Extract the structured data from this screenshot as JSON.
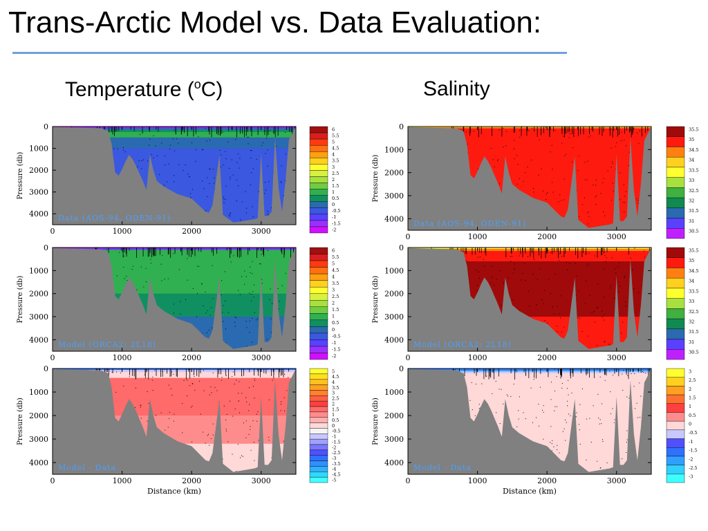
{
  "slide": {
    "title": "Trans-Arctic Model vs. Data Evaluation:",
    "left_heading": "Temperature (",
    "left_heading_sup": "o",
    "left_heading_end": "C)",
    "right_heading": "Salinity"
  },
  "colors": {
    "title_rule": "#6fa0dc",
    "land": "#808080"
  },
  "chart_data": [
    {
      "id": "temp-data",
      "type": "heatmap",
      "variable": "temperature",
      "panel_label": "Data (AOS-94, ODEN-91)",
      "ylabel": "Pressure (db)",
      "xlabel": "",
      "xlim": [
        0,
        3500
      ],
      "ylim": [
        0,
        4500
      ],
      "xticks": [
        0,
        1000,
        2000,
        3000
      ],
      "yticks": [
        0,
        1000,
        2000,
        3000,
        4000
      ],
      "colorbar": {
        "levels": [
          "6",
          "5.5",
          "5",
          "4.5",
          "4",
          "3.5",
          "3",
          "2.5",
          "2",
          "1.5",
          "1",
          "0.5",
          "0",
          "-0.5",
          "-1",
          "-1.5",
          "-2"
        ],
        "colors": [
          "#a01010",
          "#d81e1e",
          "#ff3a10",
          "#ff7010",
          "#ffa010",
          "#ffd020",
          "#ffff30",
          "#d8f040",
          "#a8e040",
          "#70cc40",
          "#30b050",
          "#109060",
          "#2a6ab0",
          "#3a58e0",
          "#5a40ff",
          "#9a30ff",
          "#d010ff"
        ]
      },
      "layers": [
        {
          "from": 0,
          "to": 40,
          "color": "#d010ff"
        },
        {
          "from": 40,
          "to": 120,
          "color": "#5a40ff"
        },
        {
          "from": 120,
          "to": 250,
          "color": "#109060"
        },
        {
          "from": 250,
          "to": 500,
          "color": "#30b050"
        },
        {
          "from": 500,
          "to": 1000,
          "color": "#2a6ab0"
        },
        {
          "from": 1000,
          "to": 4500,
          "color": "#3a58e0"
        }
      ]
    },
    {
      "id": "sal-data",
      "type": "heatmap",
      "variable": "salinity",
      "panel_label": "Data (AOS-94, ODEN-91)",
      "ylabel": "Pressure (db)",
      "xlabel": "",
      "xlim": [
        0,
        3500
      ],
      "ylim": [
        0,
        4500
      ],
      "xticks": [
        0,
        1000,
        2000,
        3000
      ],
      "yticks": [
        0,
        1000,
        2000,
        3000,
        4000
      ],
      "colorbar": {
        "levels": [
          "35.5",
          "35",
          "34.5",
          "34",
          "33.5",
          "33",
          "32.5",
          "32",
          "31.5",
          "31",
          "30.5"
        ],
        "colors": [
          "#a00a0a",
          "#ff1a10",
          "#ff8010",
          "#ffd020",
          "#ffff30",
          "#a8e040",
          "#40b040",
          "#108a50",
          "#2a6ab0",
          "#5a40ff",
          "#c020ff"
        ]
      },
      "layers": [
        {
          "from": 0,
          "to": 30,
          "color": "#ffff30"
        },
        {
          "from": 30,
          "to": 80,
          "color": "#ff8010"
        },
        {
          "from": 80,
          "to": 4500,
          "color": "#ff1a10"
        }
      ]
    },
    {
      "id": "temp-model",
      "type": "heatmap",
      "variable": "temperature",
      "panel_label": "Model (ORCA2: 2L18)",
      "ylabel": "Pressure (db)",
      "xlabel": "",
      "xlim": [
        0,
        3500
      ],
      "ylim": [
        0,
        4500
      ],
      "xticks": [
        0,
        1000,
        2000,
        3000
      ],
      "yticks": [
        0,
        1000,
        2000,
        3000,
        4000
      ],
      "colorbar": {
        "levels": [
          "6",
          "5.5",
          "5",
          "4.5",
          "4",
          "3.5",
          "3",
          "2.5",
          "2",
          "1.5",
          "1",
          "0.5",
          "0",
          "-0.5",
          "-1",
          "-1.5",
          "-2"
        ],
        "colors": [
          "#a01010",
          "#d81e1e",
          "#ff3a10",
          "#ff7010",
          "#ffa010",
          "#ffd020",
          "#ffff30",
          "#d8f040",
          "#a8e040",
          "#70cc40",
          "#30b050",
          "#109060",
          "#2a6ab0",
          "#3a58e0",
          "#5a40ff",
          "#9a30ff",
          "#d010ff"
        ]
      },
      "layers": [
        {
          "from": 0,
          "to": 40,
          "color": "#d010ff"
        },
        {
          "from": 40,
          "to": 100,
          "color": "#5a40ff"
        },
        {
          "from": 100,
          "to": 1000,
          "color": "#30b050"
        },
        {
          "from": 1000,
          "to": 2000,
          "color": "#30b050"
        },
        {
          "from": 2000,
          "to": 3000,
          "color": "#109060"
        },
        {
          "from": 3000,
          "to": 4500,
          "color": "#2a6ab0"
        }
      ]
    },
    {
      "id": "sal-model",
      "type": "heatmap",
      "variable": "salinity",
      "panel_label": "Model (ORCA2: 2L18)",
      "ylabel": "Pressure (db)",
      "xlabel": "",
      "xlim": [
        0,
        3500
      ],
      "ylim": [
        0,
        4500
      ],
      "xticks": [
        0,
        1000,
        2000,
        3000
      ],
      "yticks": [
        0,
        1000,
        2000,
        3000,
        4000
      ],
      "colorbar": {
        "levels": [
          "35.5",
          "35",
          "34.5",
          "34",
          "33.5",
          "33",
          "32.5",
          "32",
          "31.5",
          "31",
          "30.5"
        ],
        "colors": [
          "#a00a0a",
          "#ff1a10",
          "#ff8010",
          "#ffd020",
          "#ffff30",
          "#a8e040",
          "#40b040",
          "#108a50",
          "#2a6ab0",
          "#5a40ff",
          "#c020ff"
        ]
      },
      "layers": [
        {
          "from": 0,
          "to": 60,
          "color": "#ffff30"
        },
        {
          "from": 60,
          "to": 150,
          "color": "#ff8010"
        },
        {
          "from": 150,
          "to": 600,
          "color": "#ff1a10"
        },
        {
          "from": 600,
          "to": 3000,
          "color": "#a00a0a"
        },
        {
          "from": 3000,
          "to": 4500,
          "color": "#ff1a10"
        }
      ]
    },
    {
      "id": "temp-diff",
      "type": "heatmap",
      "variable": "temperature difference",
      "panel_label": "Model - Data",
      "ylabel": "Pressure (db)",
      "xlabel": "Distance (km)",
      "xlim": [
        0,
        3500
      ],
      "ylim": [
        0,
        4500
      ],
      "xticks": [
        0,
        1000,
        2000,
        3000
      ],
      "yticks": [
        0,
        1000,
        2000,
        3000,
        4000
      ],
      "colorbar": {
        "levels": [
          "5",
          "4.5",
          "4",
          "3.5",
          "3",
          "2.5",
          "2",
          "1.5",
          "1",
          "0.5",
          "0",
          "-0.5",
          "-1",
          "-1.5",
          "-2",
          "-2.5",
          "-3",
          "-3.5",
          "-4",
          "-4.5",
          "-5"
        ],
        "colors": [
          "#ffff30",
          "#ffe020",
          "#ffc020",
          "#ffa020",
          "#ff8030",
          "#ff6040",
          "#ff4040",
          "#ff6a6a",
          "#ff8c8c",
          "#ffb0b0",
          "#ffd8d8",
          "#f4f4f4",
          "#c8c8ff",
          "#a0a0ff",
          "#7878ff",
          "#5050ff",
          "#3070ff",
          "#3090ff",
          "#30b0ff",
          "#30d8ff",
          "#40ffff"
        ]
      },
      "layers": [
        {
          "from": 0,
          "to": 60,
          "color": "#3070ff"
        },
        {
          "from": 60,
          "to": 150,
          "color": "#c8c8ff"
        },
        {
          "from": 150,
          "to": 400,
          "color": "#ffd8d8"
        },
        {
          "from": 400,
          "to": 2000,
          "color": "#ff6a6a"
        },
        {
          "from": 2000,
          "to": 3200,
          "color": "#ff8c8c"
        },
        {
          "from": 3200,
          "to": 4500,
          "color": "#ffd8d8"
        }
      ]
    },
    {
      "id": "sal-diff",
      "type": "heatmap",
      "variable": "salinity difference",
      "panel_label": "Model - Data",
      "ylabel": "Pressure (db)",
      "xlabel": "Distance (km)",
      "xlim": [
        0,
        3500
      ],
      "ylim": [
        0,
        4500
      ],
      "xticks": [
        0,
        1000,
        2000,
        3000
      ],
      "yticks": [
        0,
        1000,
        2000,
        3000,
        4000
      ],
      "colorbar": {
        "levels": [
          "3",
          "2.5",
          "2",
          "1.5",
          "1",
          "0.5",
          "0",
          "-0.5",
          "-1",
          "-1.5",
          "-2",
          "-2.5",
          "-3"
        ],
        "colors": [
          "#ffff30",
          "#ffd020",
          "#ffa020",
          "#ff7030",
          "#ff4040",
          "#ff8c8c",
          "#ffd8d8",
          "#c8c8ff",
          "#5050ff",
          "#3070ff",
          "#30a0ff",
          "#30d0ff",
          "#40ffff"
        ]
      },
      "layers": [
        {
          "from": 0,
          "to": 50,
          "color": "#3070ff"
        },
        {
          "from": 50,
          "to": 120,
          "color": "#30a0ff"
        },
        {
          "from": 120,
          "to": 200,
          "color": "#c8c8ff"
        },
        {
          "from": 200,
          "to": 4500,
          "color": "#ffd8d8"
        }
      ]
    }
  ],
  "bathymetry": {
    "x": [
      0,
      700,
      800,
      850,
      900,
      950,
      1000,
      1050,
      1100,
      1150,
      1200,
      1300,
      1350,
      1400,
      1450,
      1500,
      1600,
      1800,
      2000,
      2200,
      2250,
      2300,
      2400,
      2450,
      2600,
      2800,
      2900,
      2950,
      3000,
      3050,
      3100,
      3150,
      3200,
      3250,
      3300,
      3350,
      3400,
      3450,
      3500
    ],
    "depth": [
      20,
      80,
      200,
      800,
      2100,
      2250,
      1950,
      1600,
      1300,
      1500,
      1800,
      2500,
      2900,
      1300,
      2000,
      2500,
      2750,
      3100,
      3300,
      3900,
      3950,
      3600,
      1300,
      4050,
      4400,
      4300,
      4250,
      4200,
      1200,
      4100,
      4100,
      3900,
      500,
      2800,
      3900,
      2500,
      600,
      300,
      0
    ]
  }
}
